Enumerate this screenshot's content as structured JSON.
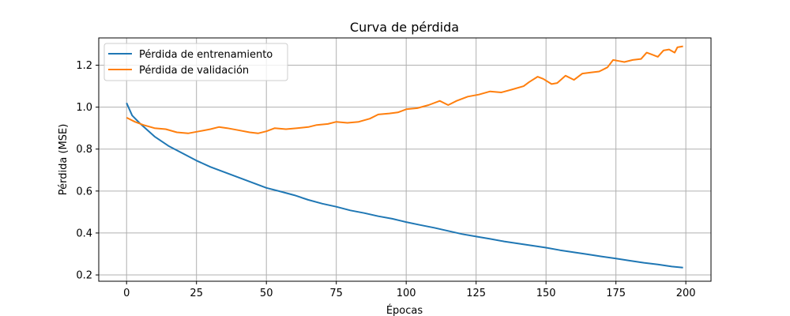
{
  "chart_data": {
    "type": "line",
    "title": "Curva de pérdida",
    "xlabel": "Épocas",
    "ylabel": "Pérdida (MSE)",
    "xlim": [
      -9.95,
      209
    ],
    "ylim": [
      0.17,
      1.33
    ],
    "xticks": [
      0,
      25,
      50,
      75,
      100,
      125,
      150,
      175,
      200
    ],
    "yticks": [
      0.2,
      0.4,
      0.6,
      0.8,
      1.0,
      1.2
    ],
    "ytick_labels": [
      "0.2",
      "0.4",
      "0.6",
      "0.8",
      "1.0",
      "1.2"
    ],
    "grid": true,
    "legend_position": "upper-left",
    "series": [
      {
        "name": "Pérdida de entrenamiento",
        "color": "#1f77b4",
        "x": [
          0,
          2,
          5,
          10,
          15,
          20,
          25,
          30,
          35,
          40,
          45,
          50,
          55,
          60,
          65,
          70,
          75,
          80,
          85,
          90,
          95,
          100,
          105,
          110,
          115,
          120,
          125,
          130,
          135,
          140,
          145,
          150,
          155,
          160,
          165,
          170,
          175,
          180,
          185,
          190,
          195,
          199
        ],
        "y": [
          1.02,
          0.96,
          0.92,
          0.86,
          0.815,
          0.78,
          0.745,
          0.715,
          0.69,
          0.665,
          0.64,
          0.615,
          0.598,
          0.58,
          0.558,
          0.54,
          0.525,
          0.508,
          0.495,
          0.48,
          0.468,
          0.452,
          0.438,
          0.425,
          0.41,
          0.395,
          0.383,
          0.372,
          0.36,
          0.35,
          0.34,
          0.33,
          0.318,
          0.308,
          0.298,
          0.288,
          0.278,
          0.268,
          0.258,
          0.25,
          0.24,
          0.235
        ]
      },
      {
        "name": "Pérdida de validación",
        "color": "#ff7f0e",
        "x": [
          0,
          3,
          6,
          10,
          14,
          18,
          22,
          26,
          30,
          33,
          36,
          40,
          44,
          47,
          50,
          53,
          57,
          61,
          65,
          68,
          72,
          75,
          79,
          83,
          87,
          90,
          94,
          97,
          100,
          104,
          108,
          112,
          115,
          118,
          122,
          126,
          130,
          134,
          138,
          142,
          144,
          147,
          149,
          152,
          154,
          157,
          160,
          163,
          166,
          169,
          172,
          174,
          176,
          178,
          181,
          184,
          186,
          188,
          190,
          192,
          194,
          196,
          197,
          199
        ],
        "y": [
          0.95,
          0.93,
          0.915,
          0.9,
          0.895,
          0.88,
          0.875,
          0.885,
          0.895,
          0.905,
          0.9,
          0.89,
          0.88,
          0.875,
          0.885,
          0.9,
          0.895,
          0.9,
          0.905,
          0.915,
          0.92,
          0.93,
          0.925,
          0.93,
          0.945,
          0.965,
          0.97,
          0.975,
          0.99,
          0.995,
          1.01,
          1.03,
          1.01,
          1.03,
          1.05,
          1.06,
          1.075,
          1.07,
          1.085,
          1.1,
          1.12,
          1.145,
          1.135,
          1.11,
          1.115,
          1.15,
          1.13,
          1.16,
          1.165,
          1.17,
          1.19,
          1.225,
          1.22,
          1.215,
          1.225,
          1.23,
          1.26,
          1.25,
          1.24,
          1.27,
          1.275,
          1.26,
          1.285,
          1.29
        ]
      }
    ]
  }
}
